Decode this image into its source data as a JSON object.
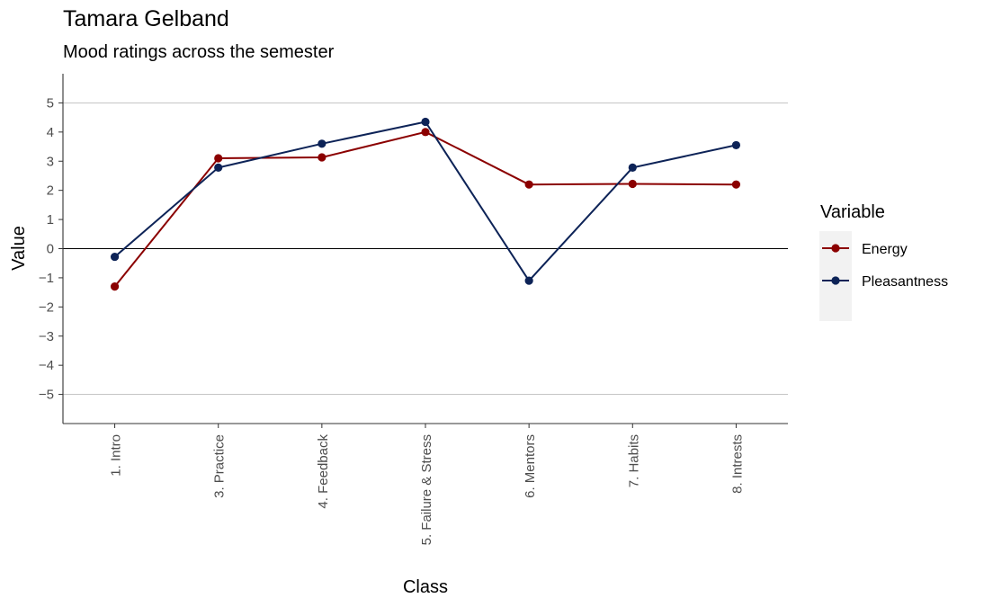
{
  "chart_data": {
    "type": "line",
    "title": "Tamara Gelband",
    "subtitle": "Mood ratings across the semester",
    "xlabel": "Class",
    "ylabel": "Value",
    "categories": [
      "1. Intro",
      "3. Practice",
      "4. Feedback",
      "5. Failure & Stress",
      "6. Mentors",
      "7. Habits",
      "8. Intrests"
    ],
    "yticks": [
      -5,
      -4,
      -3,
      -2,
      -1,
      0,
      1,
      2,
      3,
      4,
      5
    ],
    "ylim": [
      -6,
      6
    ],
    "reference_lines": [
      -5,
      0,
      5
    ],
    "grid": false,
    "legend": {
      "title": "Variable",
      "position": "right"
    },
    "series": [
      {
        "name": "Energy",
        "color": "#8b0000",
        "values": [
          -1.3,
          3.1,
          3.13,
          4.0,
          2.2,
          2.22,
          2.2
        ]
      },
      {
        "name": "Pleasantness",
        "color": "#0d2357",
        "values": [
          -0.28,
          2.78,
          3.6,
          4.35,
          -1.1,
          2.78,
          3.55
        ]
      }
    ]
  }
}
